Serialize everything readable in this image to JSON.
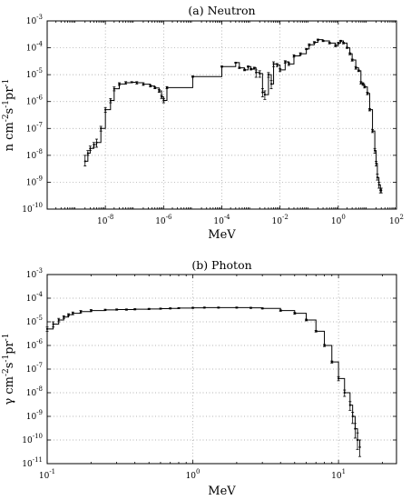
{
  "chart_data": [
    {
      "type": "line",
      "title": "(a) Neutron",
      "xlabel": "MeV",
      "ylabel": "n cm-2s-1pr-1",
      "ylabel_parts": [
        [
          "n cm",
          ""
        ],
        [
          "-2",
          "sup"
        ],
        [
          "s",
          ""
        ],
        [
          "-1",
          "sup"
        ],
        [
          "pr",
          ""
        ],
        [
          "-1",
          "sup"
        ]
      ],
      "xscale": "log",
      "yscale": "log",
      "xlim": [
        1e-10,
        100
      ],
      "ylim": [
        1e-10,
        0.001
      ],
      "grid": true,
      "xticks": [
        {
          "v": 1e-08,
          "b": "10",
          "e": "-8"
        },
        {
          "v": 1e-06,
          "b": "10",
          "e": "-6"
        },
        {
          "v": 0.0001,
          "b": "10",
          "e": "-4"
        },
        {
          "v": 0.01,
          "b": "10",
          "e": "-2"
        },
        {
          "v": 1,
          "b": "10",
          "e": "0"
        },
        {
          "v": 100,
          "b": "10",
          "e": "2"
        }
      ],
      "yticks": [
        {
          "v": 1e-10,
          "b": "10",
          "e": "-10"
        },
        {
          "v": 1e-09,
          "b": "10",
          "e": "-9"
        },
        {
          "v": 1e-08,
          "b": "10",
          "e": "-8"
        },
        {
          "v": 1e-07,
          "b": "10",
          "e": "-7"
        },
        {
          "v": 1e-06,
          "b": "10",
          "e": "-6"
        },
        {
          "v": 1e-05,
          "b": "10",
          "e": "-5"
        },
        {
          "v": 0.0001,
          "b": "10",
          "e": "-4"
        },
        {
          "v": 0.001,
          "b": "10",
          "e": "-3"
        }
      ],
      "series": [
        {
          "x": [
            2e-09,
            2.5e-09,
            3e-09,
            4e-09,
            5e-09,
            7e-09,
            1e-08,
            1.5e-08,
            2e-08,
            3e-08,
            5e-08,
            8e-08,
            1.2e-07,
            2e-07,
            3.5e-07,
            5e-07,
            7e-07,
            8.5e-07,
            1e-06,
            1.3e-06,
            1e-05,
            0.0001,
            0.0003,
            0.0004,
            0.0006,
            0.0008,
            0.001,
            0.0013,
            0.0015,
            0.002,
            0.0025,
            0.003,
            0.004,
            0.005,
            0.006,
            0.008,
            0.01,
            0.015,
            0.02,
            0.03,
            0.05,
            0.08,
            0.1,
            0.15,
            0.2,
            0.3,
            0.5,
            0.8,
            1.0,
            1.2,
            1.5,
            2,
            2.5,
            3,
            4,
            5,
            6,
            7,
            8,
            10,
            12,
            15,
            18,
            20,
            22,
            25,
            28,
            30
          ],
          "y": [
            6e-09,
            1.2e-08,
            1.8e-08,
            2.5e-08,
            3e-08,
            1e-07,
            5e-07,
            1.1e-06,
            3e-06,
            4.5e-06,
            5e-06,
            5.2e-06,
            5e-06,
            4.4e-06,
            3.8e-06,
            3.2e-06,
            2.5e-06,
            1.5e-06,
            1.1e-06,
            3.3e-06,
            8.5e-06,
            2e-05,
            2.8e-05,
            1.8e-05,
            1.5e-05,
            2e-05,
            1.6e-05,
            1.8e-05,
            1.2e-05,
            1.1e-05,
            2.2e-06,
            1.8e-06,
            1e-05,
            4.5e-06,
            2.5e-05,
            2.3e-05,
            1.5e-05,
            3e-05,
            2.5e-05,
            5e-05,
            6e-05,
            9e-05,
            0.00013,
            0.00016,
            0.0002,
            0.00018,
            0.00015,
            0.00012,
            0.00015,
            0.00018,
            0.00015,
            0.0001,
            6e-05,
            3.5e-05,
            1.8e-05,
            1.4e-05,
            5e-06,
            4.5e-06,
            3.5e-06,
            2e-06,
            5e-07,
            8e-08,
            1.5e-08,
            5e-09,
            1.5e-09,
            8e-10,
            5e-10,
            5e-10
          ],
          "err_lo": [
            4e-09,
            1e-08,
            1.5e-08,
            2e-08,
            2e-08,
            8e-08,
            4e-07,
            9e-07,
            2.5e-06,
            4e-06,
            4.5e-06,
            5e-06,
            4.5e-06,
            4e-06,
            3.5e-06,
            3e-06,
            2.2e-06,
            1.3e-06,
            9e-07,
            3e-06,
            8e-06,
            1.9e-05,
            2.7e-05,
            1.7e-05,
            1.4e-05,
            1.9e-05,
            1.5e-05,
            1.7e-05,
            8e-06,
            8e-06,
            1.5e-06,
            1.2e-06,
            8e-06,
            3e-06,
            2e-05,
            2e-05,
            1.3e-05,
            2.7e-05,
            2.2e-05,
            4.5e-05,
            5.5e-05,
            8.5e-05,
            0.00012,
            0.00015,
            0.00019,
            0.00017,
            0.00014,
            0.00011,
            0.00014,
            0.00017,
            0.00014,
            9.5e-05,
            5.5e-05,
            3.2e-05,
            1.6e-05,
            1.3e-05,
            4.5e-06,
            4e-06,
            3.2e-06,
            1.8e-06,
            4.5e-07,
            7e-08,
            1.2e-08,
            4e-09,
            1.2e-09,
            6e-10,
            4e-10,
            4e-10
          ],
          "err_hi": [
            1e-08,
            1.5e-08,
            2.2e-08,
            3e-08,
            4e-08,
            1.2e-07,
            6e-07,
            1.3e-06,
            3.5e-06,
            5e-06,
            5.5e-06,
            5.5e-06,
            5.5e-06,
            5e-06,
            4.2e-06,
            3.5e-06,
            2.8e-06,
            1.7e-06,
            1.3e-06,
            3.6e-06,
            9e-06,
            2.1e-05,
            2.9e-05,
            1.9e-05,
            1.6e-05,
            2.1e-05,
            1.7e-05,
            1.9e-05,
            1.5e-05,
            1.4e-05,
            3e-06,
            2.5e-06,
            1.2e-05,
            6e-06,
            3e-05,
            2.6e-05,
            1.7e-05,
            3.3e-05,
            2.8e-05,
            5.5e-05,
            6.5e-05,
            9.5e-05,
            0.00014,
            0.00017,
            0.00021,
            0.00019,
            0.00016,
            0.00013,
            0.00016,
            0.00019,
            0.00016,
            0.000105,
            6.5e-05,
            3.8e-05,
            2e-05,
            1.5e-05,
            5.5e-06,
            5e-06,
            3.8e-06,
            2.2e-06,
            5.5e-07,
            9e-08,
            1.8e-08,
            6e-09,
            2e-09,
            1e-09,
            6e-10,
            6e-10
          ]
        }
      ]
    },
    {
      "type": "line",
      "title": "(b) Photon",
      "xlabel": "MeV",
      "ylabel": "γ cm-2s-1pr-1",
      "ylabel_parts": [
        [
          "γ cm",
          ""
        ],
        [
          "-2",
          "sup"
        ],
        [
          "s",
          ""
        ],
        [
          "-1",
          "sup"
        ],
        [
          "pr",
          ""
        ],
        [
          "-1",
          "sup"
        ]
      ],
      "xscale": "log",
      "yscale": "log",
      "xlim": [
        0.1,
        25
      ],
      "ylim": [
        1e-11,
        0.001
      ],
      "grid": true,
      "xticks": [
        {
          "v": 0.1,
          "b": "10",
          "e": "-1"
        },
        {
          "v": 1,
          "b": "10",
          "e": "0"
        },
        {
          "v": 10,
          "b": "10",
          "e": "1"
        }
      ],
      "yticks": [
        {
          "v": 1e-11,
          "b": "10",
          "e": "-11"
        },
        {
          "v": 1e-10,
          "b": "10",
          "e": "-10"
        },
        {
          "v": 1e-09,
          "b": "10",
          "e": "-9"
        },
        {
          "v": 1e-08,
          "b": "10",
          "e": "-8"
        },
        {
          "v": 1e-07,
          "b": "10",
          "e": "-7"
        },
        {
          "v": 1e-06,
          "b": "10",
          "e": "-6"
        },
        {
          "v": 1e-05,
          "b": "10",
          "e": "-5"
        },
        {
          "v": 0.0001,
          "b": "10",
          "e": "-4"
        },
        {
          "v": 0.001,
          "b": "10",
          "e": "-3"
        }
      ],
      "series": [
        {
          "x": [
            0.1,
            0.11,
            0.12,
            0.13,
            0.14,
            0.15,
            0.17,
            0.2,
            0.25,
            0.3,
            0.35,
            0.4,
            0.5,
            0.6,
            0.7,
            0.8,
            1.0,
            1.2,
            1.5,
            2.0,
            2.5,
            3.0,
            4.0,
            5.0,
            6.0,
            7.0,
            8.0,
            9.0,
            10.0,
            11.0,
            12.0,
            12.5,
            13.0,
            13.5,
            14.0
          ],
          "y": [
            5e-06,
            8e-06,
            1.2e-05,
            1.6e-05,
            2e-05,
            2.3e-05,
            2.7e-05,
            3e-05,
            3.2e-05,
            3.3e-05,
            3.3e-05,
            3.4e-05,
            3.5e-05,
            3.6e-05,
            3.7e-05,
            3.8e-05,
            3.9e-05,
            4e-05,
            4e-05,
            4e-05,
            3.9e-05,
            3.7e-05,
            3e-05,
            2.3e-05,
            1.2e-05,
            4e-06,
            1e-06,
            2e-07,
            4e-08,
            1e-08,
            3e-09,
            1e-09,
            3e-10,
            1e-10,
            5e-11
          ],
          "err_lo": [
            4e-06,
            6e-06,
            1e-05,
            1.4e-05,
            1.8e-05,
            2e-05,
            2.4e-05,
            2.7e-05,
            3e-05,
            3.1e-05,
            3.1e-05,
            3.2e-05,
            3.3e-05,
            3.4e-05,
            3.5e-05,
            3.6e-05,
            3.7e-05,
            3.8e-05,
            3.8e-05,
            3.8e-05,
            3.7e-05,
            3.5e-05,
            2.8e-05,
            2.1e-05,
            1.1e-05,
            3.7e-06,
            9e-07,
            1.8e-07,
            3.2e-08,
            7e-09,
            1.8e-09,
            5e-10,
            1.2e-10,
            4e-11,
            2e-11
          ],
          "err_hi": [
            6e-06,
            1e-05,
            1.4e-05,
            1.8e-05,
            2.2e-05,
            2.6e-05,
            3e-05,
            3.3e-05,
            3.4e-05,
            3.5e-05,
            3.5e-05,
            3.6e-05,
            3.7e-05,
            3.8e-05,
            3.9e-05,
            4e-05,
            4.1e-05,
            4.2e-05,
            4.2e-05,
            4.2e-05,
            4.1e-05,
            3.9e-05,
            3.2e-05,
            2.5e-05,
            1.3e-05,
            4.3e-06,
            1.1e-06,
            2.2e-07,
            4.8e-08,
            1.3e-08,
            4.2e-09,
            1.5e-09,
            5e-10,
            2e-10,
            1e-10
          ]
        }
      ]
    }
  ]
}
